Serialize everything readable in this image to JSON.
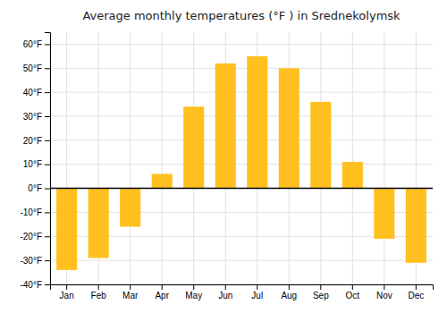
{
  "chart_data": {
    "type": "bar",
    "title": "Average monthly temperatures (°F ) in Srednekolymsk",
    "categories": [
      "Jan",
      "Feb",
      "Mar",
      "Apr",
      "May",
      "Jun",
      "Jul",
      "Aug",
      "Sep",
      "Oct",
      "Nov",
      "Dec"
    ],
    "values": [
      -34,
      -29,
      -16,
      6,
      34,
      52,
      55,
      50,
      36,
      11,
      -21,
      -31
    ],
    "color": "#FFC020",
    "ylim": [
      -40,
      65
    ],
    "yticks": [
      {
        "value": -40,
        "label": "-40°F"
      },
      {
        "value": -30,
        "label": "-30°F"
      },
      {
        "value": -20,
        "label": "-20°F"
      },
      {
        "value": -10,
        "label": "-10°F"
      },
      {
        "value": 0,
        "label": "0°F"
      },
      {
        "value": 10,
        "label": "10°F"
      },
      {
        "value": 20,
        "label": "20°F"
      },
      {
        "value": 30,
        "label": "30°F"
      },
      {
        "value": 40,
        "label": "40°F"
      },
      {
        "value": 50,
        "label": "50°F"
      },
      {
        "value": 60,
        "label": "60°F"
      }
    ],
    "grid": true
  }
}
